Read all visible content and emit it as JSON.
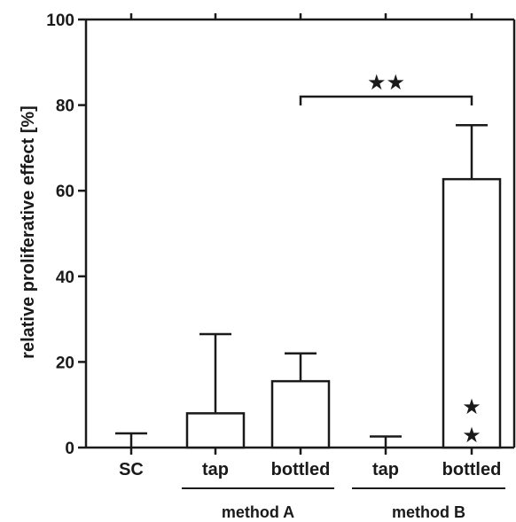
{
  "chart_data": {
    "type": "bar",
    "ylabel": "relative proliferative effect [%]",
    "xlabel": "",
    "ylim": [
      0,
      100
    ],
    "yticks": [
      "0",
      "20",
      "40",
      "60",
      "80",
      "100"
    ],
    "categories": [
      "SC",
      "tap",
      "bottled",
      "tap",
      "bottled"
    ],
    "values": [
      0,
      8,
      15.5,
      0,
      62.7
    ],
    "errors": [
      3.3,
      18.5,
      6.5,
      2.6,
      12.6
    ],
    "groups": [
      {
        "label": "method A",
        "categories": [
          1,
          2
        ]
      },
      {
        "label": "method B",
        "categories": [
          3,
          4
        ]
      }
    ],
    "significance": [
      {
        "from": 2,
        "to": 4,
        "y": 82,
        "label": "★★"
      }
    ],
    "bar_annotations": [
      {
        "category": 4,
        "symbols": [
          "★",
          "★"
        ]
      }
    ],
    "colors": {
      "bar_fill": "#ffffff",
      "stroke": "#1a1a1a"
    }
  }
}
